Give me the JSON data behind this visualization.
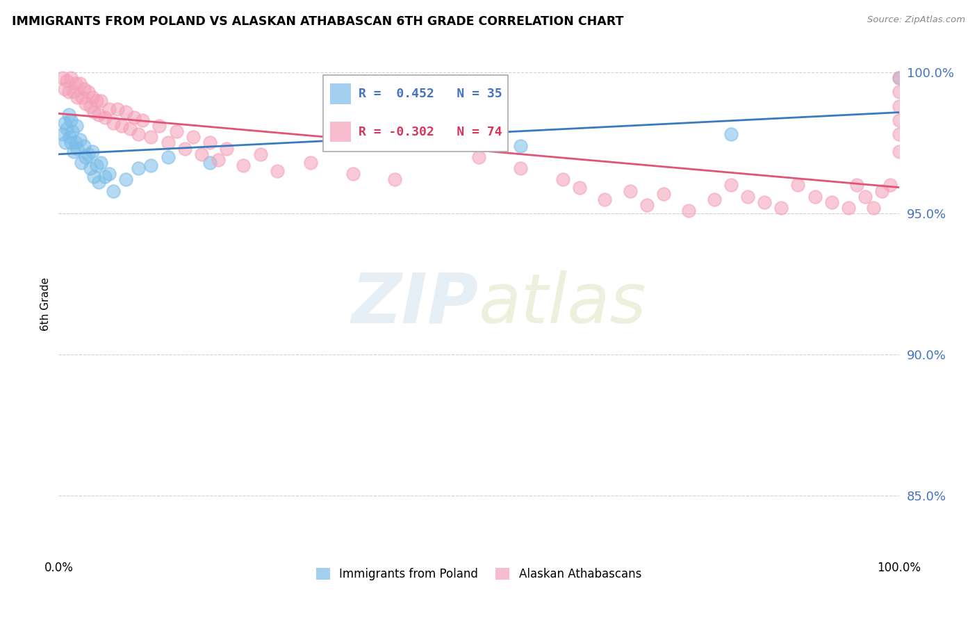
{
  "title": "IMMIGRANTS FROM POLAND VS ALASKAN ATHABASCAN 6TH GRADE CORRELATION CHART",
  "source": "Source: ZipAtlas.com",
  "ylabel": "6th Grade",
  "legend_label1": "Immigrants from Poland",
  "legend_label2": "Alaskan Athabascans",
  "R1": 0.452,
  "N1": 35,
  "R2": -0.302,
  "N2": 74,
  "color_blue": "#7bbde8",
  "color_pink": "#f4a0b8",
  "color_blue_line": "#3a7abf",
  "color_pink_line": "#e05575",
  "color_blue_text": "#4472c4",
  "color_pink_text": "#d6365a",
  "xlim": [
    0.0,
    1.0
  ],
  "ylim": [
    0.828,
    1.008
  ],
  "yticks": [
    0.85,
    0.9,
    0.95,
    1.0
  ],
  "ytick_labels": [
    "85.0%",
    "90.0%",
    "95.0%",
    "100.0%"
  ],
  "xticks": [
    0.0,
    0.25,
    0.5,
    0.75,
    1.0
  ],
  "xtick_labels": [
    "0.0%",
    "",
    "",
    "",
    "100.0%"
  ],
  "blue_x": [
    0.005,
    0.007,
    0.008,
    0.01,
    0.012,
    0.013,
    0.015,
    0.015,
    0.016,
    0.018,
    0.02,
    0.021,
    0.022,
    0.025,
    0.027,
    0.03,
    0.032,
    0.035,
    0.038,
    0.04,
    0.042,
    0.045,
    0.048,
    0.05,
    0.055,
    0.06,
    0.065,
    0.08,
    0.095,
    0.11,
    0.13,
    0.18,
    0.55,
    0.8,
    1.0
  ],
  "blue_y": [
    0.978,
    0.982,
    0.975,
    0.98,
    0.985,
    0.977,
    0.983,
    0.975,
    0.979,
    0.972,
    0.975,
    0.981,
    0.973,
    0.976,
    0.968,
    0.974,
    0.97,
    0.971,
    0.966,
    0.972,
    0.963,
    0.967,
    0.961,
    0.968,
    0.963,
    0.964,
    0.958,
    0.962,
    0.966,
    0.967,
    0.97,
    0.968,
    0.974,
    0.978,
    0.998
  ],
  "pink_x": [
    0.005,
    0.007,
    0.01,
    0.012,
    0.015,
    0.018,
    0.02,
    0.022,
    0.025,
    0.028,
    0.03,
    0.032,
    0.035,
    0.038,
    0.04,
    0.042,
    0.045,
    0.048,
    0.05,
    0.055,
    0.06,
    0.065,
    0.07,
    0.075,
    0.08,
    0.085,
    0.09,
    0.095,
    0.1,
    0.11,
    0.12,
    0.13,
    0.14,
    0.15,
    0.16,
    0.17,
    0.18,
    0.19,
    0.2,
    0.22,
    0.24,
    0.26,
    0.3,
    0.35,
    0.4,
    0.5,
    0.55,
    0.6,
    0.62,
    0.65,
    0.68,
    0.7,
    0.72,
    0.75,
    0.78,
    0.8,
    0.82,
    0.84,
    0.86,
    0.88,
    0.9,
    0.92,
    0.94,
    0.95,
    0.96,
    0.97,
    0.98,
    0.99,
    1.0,
    1.0,
    1.0,
    1.0,
    1.0,
    1.0
  ],
  "pink_y": [
    0.998,
    0.994,
    0.997,
    0.993,
    0.998,
    0.993,
    0.996,
    0.991,
    0.996,
    0.991,
    0.994,
    0.989,
    0.993,
    0.988,
    0.991,
    0.986,
    0.99,
    0.985,
    0.99,
    0.984,
    0.987,
    0.982,
    0.987,
    0.981,
    0.986,
    0.98,
    0.984,
    0.978,
    0.983,
    0.977,
    0.981,
    0.975,
    0.979,
    0.973,
    0.977,
    0.971,
    0.975,
    0.969,
    0.973,
    0.967,
    0.971,
    0.965,
    0.968,
    0.964,
    0.962,
    0.97,
    0.966,
    0.962,
    0.959,
    0.955,
    0.958,
    0.953,
    0.957,
    0.951,
    0.955,
    0.96,
    0.956,
    0.954,
    0.952,
    0.96,
    0.956,
    0.954,
    0.952,
    0.96,
    0.956,
    0.952,
    0.958,
    0.96,
    0.998,
    0.993,
    0.988,
    0.983,
    0.978,
    0.972
  ],
  "watermark_zip": "ZIP",
  "watermark_atlas": "atlas",
  "background_color": "#ffffff",
  "grid_color": "#d0d0d0"
}
